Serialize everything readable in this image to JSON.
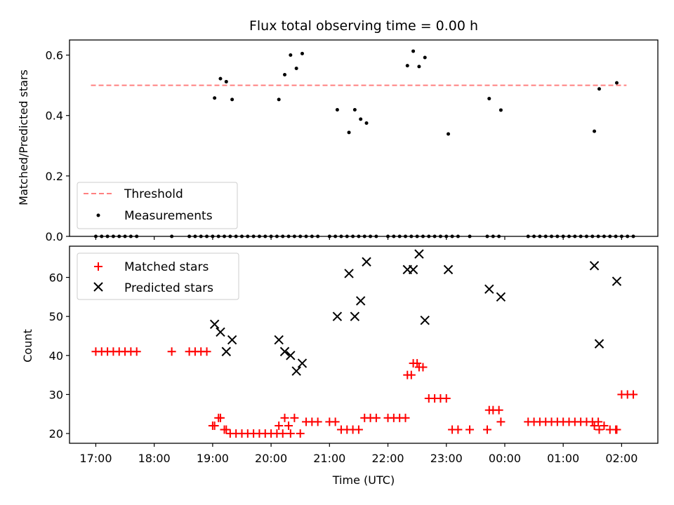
{
  "chart_data": [
    {
      "type": "scatter",
      "title": "Flux total observing time = 0.00 h",
      "xlabel": "",
      "ylabel": "Matched/Predicted stars",
      "ylim": [
        0,
        0.65
      ],
      "yticks": [
        "0.0",
        "0.2",
        "0.4",
        "0.6"
      ],
      "xlim_hours_utc": [
        16.55,
        26.62
      ],
      "legend": {
        "placement": "lower-left",
        "entries": [
          "Threshold",
          "Measurements"
        ]
      },
      "threshold": {
        "name": "Threshold",
        "y": 0.5,
        "x_range": [
          "16:55",
          "02:05"
        ],
        "color": "#ff8080"
      },
      "series": [
        {
          "name": "Measurements",
          "color": "#000000",
          "x": [
            "17:00",
            "17:06",
            "17:12",
            "17:18",
            "17:24",
            "17:30",
            "17:36",
            "17:42",
            "18:18",
            "18:36",
            "18:42",
            "18:48",
            "18:54",
            "19:00",
            "19:06",
            "19:12",
            "19:18",
            "19:24",
            "19:30",
            "19:36",
            "19:42",
            "19:48",
            "19:54",
            "20:00",
            "20:06",
            "20:12",
            "20:18",
            "20:24",
            "20:30",
            "20:36",
            "20:42",
            "20:48",
            "21:00",
            "21:06",
            "21:12",
            "21:18",
            "21:24",
            "21:30",
            "21:36",
            "21:42",
            "21:48",
            "22:00",
            "22:06",
            "22:12",
            "22:18",
            "22:24",
            "22:30",
            "22:36",
            "22:42",
            "22:48",
            "22:54",
            "23:00",
            "23:06",
            "23:12",
            "23:24",
            "23:42",
            "23:48",
            "23:54",
            "00:24",
            "00:30",
            "00:36",
            "00:42",
            "00:48",
            "00:54",
            "01:00",
            "01:06",
            "01:12",
            "01:18",
            "01:24",
            "01:30",
            "01:36",
            "01:42",
            "01:48",
            "01:54",
            "02:00",
            "02:06",
            "02:12",
            "19:02",
            "19:08",
            "19:14",
            "19:20",
            "20:08",
            "20:14",
            "20:20",
            "20:26",
            "20:32",
            "21:08",
            "21:20",
            "21:26",
            "21:32",
            "21:38",
            "22:20",
            "22:26",
            "22:32",
            "22:38",
            "23:02",
            "23:44",
            "23:56",
            "01:32",
            "01:37",
            "01:55"
          ],
          "y": [
            0,
            0,
            0,
            0,
            0,
            0,
            0,
            0,
            0,
            0,
            0,
            0,
            0,
            0,
            0,
            0,
            0,
            0,
            0,
            0,
            0,
            0,
            0,
            0,
            0,
            0,
            0,
            0,
            0,
            0,
            0,
            0,
            0,
            0,
            0,
            0,
            0,
            0,
            0,
            0,
            0,
            0,
            0,
            0,
            0,
            0,
            0,
            0,
            0,
            0,
            0,
            0,
            0,
            0,
            0,
            0,
            0,
            0,
            0,
            0,
            0,
            0,
            0,
            0,
            0,
            0,
            0,
            0,
            0,
            0,
            0,
            0,
            0,
            0,
            0,
            0,
            0,
            0.458,
            0.522,
            0.512,
            0.453,
            0.453,
            0.535,
            0.6,
            0.556,
            0.605,
            0.419,
            0.344,
            0.419,
            0.388,
            0.375,
            0.565,
            0.613,
            0.562,
            0.592,
            0.339,
            0.456,
            0.418,
            0.348,
            0.488,
            0.508
          ]
        }
      ]
    },
    {
      "type": "scatter",
      "xlabel": "Time (UTC)",
      "ylabel": "Count",
      "ylim": [
        17.5,
        68
      ],
      "yticks": [
        "20",
        "30",
        "40",
        "50",
        "60"
      ],
      "xticks": [
        "17:00",
        "18:00",
        "19:00",
        "20:00",
        "21:00",
        "22:00",
        "23:00",
        "00:00",
        "01:00",
        "02:00"
      ],
      "legend": {
        "placement": "top-left",
        "entries": [
          "Matched stars",
          "Predicted stars"
        ]
      },
      "series": [
        {
          "name": "Matched stars",
          "color": "#ff0000",
          "x": [
            "17:00",
            "17:06",
            "17:12",
            "17:18",
            "17:24",
            "17:30",
            "17:36",
            "17:42",
            "18:18",
            "18:36",
            "18:42",
            "18:48",
            "18:54",
            "19:00",
            "19:06",
            "19:12",
            "19:18",
            "19:24",
            "19:30",
            "19:36",
            "19:42",
            "19:48",
            "19:54",
            "20:00",
            "20:06",
            "20:12",
            "20:18",
            "20:24",
            "20:30",
            "20:36",
            "20:42",
            "20:48",
            "21:00",
            "21:06",
            "21:12",
            "21:18",
            "21:24",
            "21:30",
            "21:36",
            "21:42",
            "21:48",
            "22:00",
            "22:06",
            "22:12",
            "22:18",
            "22:24",
            "22:30",
            "22:36",
            "22:42",
            "22:48",
            "22:54",
            "23:00",
            "23:06",
            "23:12",
            "23:24",
            "23:42",
            "23:48",
            "23:54",
            "00:24",
            "00:30",
            "00:36",
            "00:42",
            "00:48",
            "00:54",
            "01:00",
            "01:06",
            "01:12",
            "01:18",
            "01:24",
            "01:30",
            "01:36",
            "01:42",
            "01:48",
            "01:54",
            "02:00",
            "02:06",
            "02:12",
            "19:02",
            "19:08",
            "19:14",
            "20:08",
            "20:14",
            "20:20",
            "22:20",
            "22:26",
            "22:32",
            "23:44",
            "23:56",
            "01:32",
            "01:37",
            "01:55"
          ],
          "y": [
            41,
            41,
            41,
            41,
            41,
            41,
            41,
            41,
            41,
            41,
            41,
            41,
            41,
            22,
            24,
            21,
            20,
            20,
            20,
            20,
            20,
            20,
            20,
            20,
            20,
            20,
            22,
            24,
            20,
            23,
            23,
            23,
            23,
            23,
            21,
            21,
            21,
            21,
            24,
            24,
            24,
            24,
            24,
            24,
            24,
            35,
            38,
            37,
            29,
            29,
            29,
            29,
            21,
            21,
            21,
            21,
            26,
            26,
            23,
            23,
            23,
            23,
            23,
            23,
            23,
            23,
            23,
            23,
            23,
            23,
            23,
            22,
            21,
            21,
            30,
            30,
            30,
            22,
            24,
            21,
            22,
            24,
            20,
            35,
            38,
            37,
            26,
            23,
            22,
            21,
            21
          ]
        },
        {
          "name": "Predicted stars",
          "color": "#000000",
          "x": [
            "19:02",
            "19:08",
            "19:14",
            "19:20",
            "20:08",
            "20:14",
            "20:20",
            "20:26",
            "20:32",
            "21:08",
            "21:20",
            "21:26",
            "21:32",
            "21:38",
            "22:20",
            "22:26",
            "22:32",
            "22:38",
            "23:02",
            "23:44",
            "23:56",
            "01:32",
            "01:37",
            "01:55"
          ],
          "y": [
            48,
            46,
            41,
            44,
            44,
            41,
            40,
            36,
            38,
            50,
            61,
            50,
            54,
            64,
            62,
            62,
            66,
            49,
            62,
            57,
            55,
            63,
            43,
            59
          ]
        }
      ]
    }
  ]
}
